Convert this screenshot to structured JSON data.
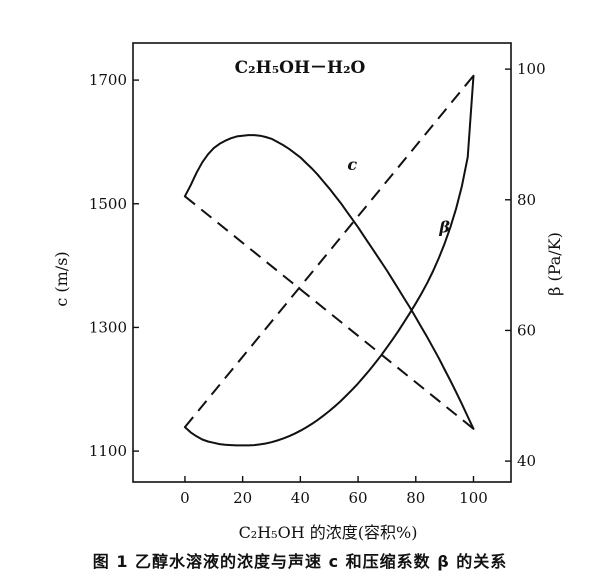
{
  "caption": "图 1 乙醇水溶液的浓度与声速 c 和压缩系数 β 的关系",
  "chart_data": {
    "type": "line",
    "title": "C₂H₅OH－H₂O",
    "xlabel": "C₂H₅OH 的浓度(容积%)",
    "ylabel_left": "c (m/s)",
    "ylabel_right": "β (Pa/K)",
    "xlim": [
      -18,
      113
    ],
    "ylim_left": [
      1050,
      1760
    ],
    "ylim_right": [
      36.8,
      104
    ],
    "xticks": [
      0,
      20,
      40,
      60,
      80,
      100
    ],
    "yticks_left": [
      1100,
      1300,
      1500,
      1700
    ],
    "yticks_right": [
      40,
      60,
      80,
      100
    ],
    "grid": false,
    "series": [
      {
        "name": "c",
        "axis": "left",
        "style": "solid",
        "label": "c",
        "label_at": [
          58,
          1555
        ],
        "x": [
          0,
          2,
          4,
          6,
          8,
          10,
          12,
          14,
          16,
          18,
          20,
          22,
          24,
          26,
          28,
          30,
          32,
          34,
          36,
          38,
          40,
          42,
          44,
          46,
          48,
          50,
          52,
          54,
          56,
          58,
          60,
          62,
          64,
          66,
          68,
          70,
          72,
          74,
          76,
          78,
          80,
          82,
          84,
          86,
          88,
          90,
          92,
          94,
          96,
          98,
          100
        ],
        "values": [
          1512,
          1530,
          1550,
          1567,
          1580,
          1590,
          1597,
          1602,
          1606,
          1609,
          1610,
          1611,
          1611,
          1610,
          1608,
          1605,
          1600,
          1595,
          1589,
          1582,
          1575,
          1566,
          1557,
          1547,
          1536,
          1525,
          1513,
          1501,
          1488,
          1475,
          1462,
          1448,
          1434,
          1420,
          1406,
          1392,
          1377,
          1362,
          1347,
          1332,
          1316,
          1300,
          1284,
          1267,
          1250,
          1232,
          1214,
          1195,
          1176,
          1156,
          1136
        ]
      },
      {
        "name": "c dashed",
        "axis": "left",
        "style": "dashed",
        "x": [
          0,
          100
        ],
        "values": [
          1512,
          1136
        ]
      },
      {
        "name": "β",
        "axis": "right",
        "style": "solid",
        "label": "β",
        "label_at": [
          90,
          75
        ],
        "x": [
          0,
          2,
          4,
          6,
          8,
          10,
          12,
          14,
          16,
          18,
          20,
          22,
          24,
          26,
          28,
          30,
          32,
          34,
          36,
          38,
          40,
          42,
          44,
          46,
          48,
          50,
          52,
          54,
          56,
          58,
          60,
          62,
          64,
          66,
          68,
          70,
          72,
          74,
          76,
          78,
          80,
          82,
          84,
          86,
          88,
          90,
          92,
          94,
          96,
          98,
          100
        ],
        "values": [
          45.2,
          44.4,
          43.8,
          43.3,
          43.0,
          42.8,
          42.6,
          42.5,
          42.45,
          42.4,
          42.4,
          42.4,
          42.45,
          42.55,
          42.7,
          42.9,
          43.15,
          43.45,
          43.8,
          44.2,
          44.65,
          45.15,
          45.7,
          46.3,
          46.95,
          47.65,
          48.4,
          49.2,
          50.05,
          50.95,
          51.9,
          52.9,
          53.95,
          55.05,
          56.2,
          57.4,
          58.65,
          59.95,
          61.3,
          62.7,
          64.15,
          65.65,
          67.3,
          69.1,
          71.1,
          73.3,
          75.8,
          78.7,
          82.1,
          86.5,
          99.0
        ]
      },
      {
        "name": "β dashed",
        "axis": "right",
        "style": "dashed",
        "x": [
          0,
          100
        ],
        "values": [
          45.2,
          99.0
        ]
      }
    ]
  }
}
